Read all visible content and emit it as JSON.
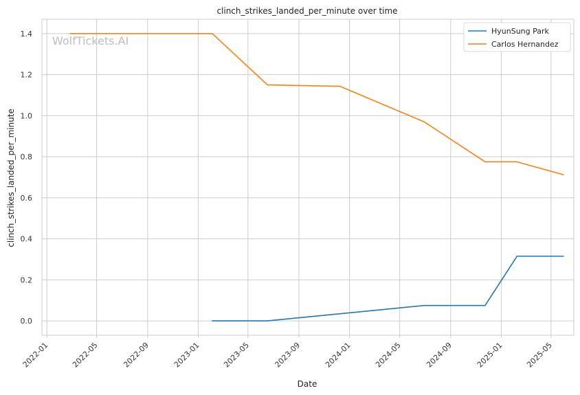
{
  "watermark": "WolfTickets.AI",
  "chart_data": {
    "type": "line",
    "title": "clinch_strikes_landed_per_minute over time",
    "xlabel": "Date",
    "ylabel": "clinch_strikes_landed_per_minute",
    "xlim": [
      "2021-12-20",
      "2025-06-25"
    ],
    "ylim": [
      -0.07,
      1.47
    ],
    "x_ticks": [
      "2022-01",
      "2022-05",
      "2022-09",
      "2023-01",
      "2023-05",
      "2023-09",
      "2024-01",
      "2024-05",
      "2024-09",
      "2025-01",
      "2025-05"
    ],
    "y_ticks": [
      0.0,
      0.2,
      0.4,
      0.6,
      0.8,
      1.0,
      1.2,
      1.4
    ],
    "y_tick_labels": [
      "0.0",
      "0.2",
      "0.4",
      "0.6",
      "0.8",
      "1.0",
      "1.2",
      "1.4"
    ],
    "grid": true,
    "legend_position": "top-right",
    "series": [
      {
        "name": "HyunSung Park",
        "color": "#1f77b4",
        "points": [
          {
            "x": "2023-02-04",
            "y": 0.0
          },
          {
            "x": "2023-06-17",
            "y": 0.0
          },
          {
            "x": "2024-06-29",
            "y": 0.075
          },
          {
            "x": "2024-11-23",
            "y": 0.075
          },
          {
            "x": "2025-02-08",
            "y": 0.315
          },
          {
            "x": "2025-05-31",
            "y": 0.315
          }
        ]
      },
      {
        "name": "Carlos Hernandez",
        "color": "#ff7f0e",
        "points": [
          {
            "x": "2022-02-26",
            "y": 1.4
          },
          {
            "x": "2023-02-04",
            "y": 1.4
          },
          {
            "x": "2023-06-17",
            "y": 1.15
          },
          {
            "x": "2023-12-09",
            "y": 1.143
          },
          {
            "x": "2024-06-29",
            "y": 0.97
          },
          {
            "x": "2024-11-23",
            "y": 0.775
          },
          {
            "x": "2025-02-08",
            "y": 0.775
          },
          {
            "x": "2025-05-31",
            "y": 0.712
          }
        ]
      }
    ]
  }
}
